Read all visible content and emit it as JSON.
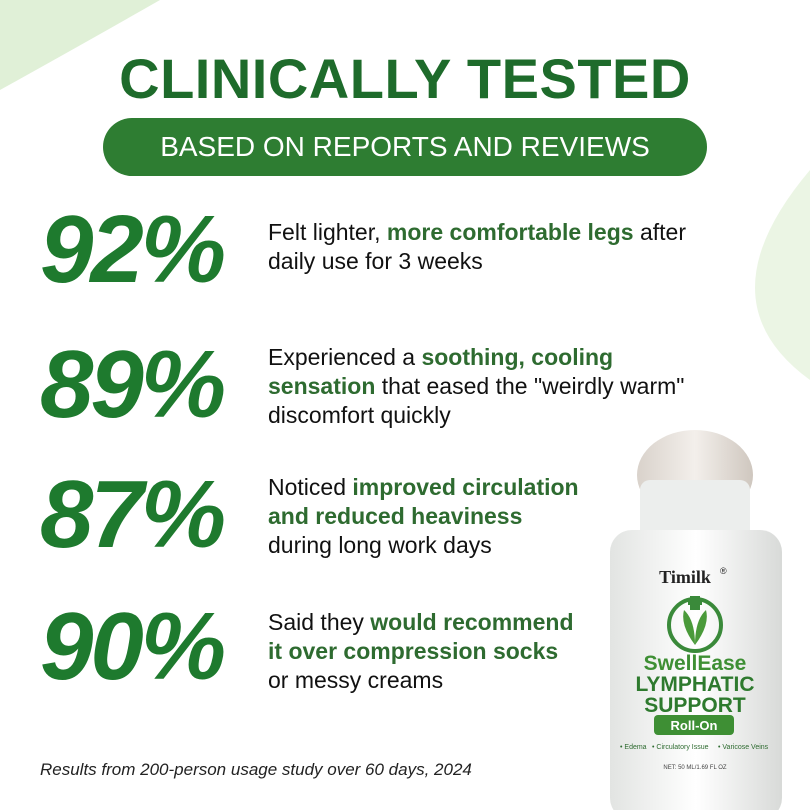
{
  "header": {
    "title": "CLINICALLY TESTED",
    "subtitle": "BASED ON REPORTS AND REVIEWS"
  },
  "stats": [
    {
      "percent": "92%",
      "parts": [
        {
          "text": "Felt lighter, ",
          "emphasis": false
        },
        {
          "text": "more comfortable legs",
          "emphasis": true
        },
        {
          "text": " after daily use for 3 weeks",
          "emphasis": false
        }
      ]
    },
    {
      "percent": "89%",
      "parts": [
        {
          "text": "Experienced a ",
          "emphasis": false
        },
        {
          "text": "soothing, cooling sensation",
          "emphasis": true
        },
        {
          "text": " that eased the \"weirdly warm\" discomfort quickly",
          "emphasis": false
        }
      ]
    },
    {
      "percent": "87%",
      "parts": [
        {
          "text": "Noticed ",
          "emphasis": false
        },
        {
          "text": "improved circulation and reduced heaviness",
          "emphasis": true
        },
        {
          "text": " during long work days",
          "emphasis": false
        }
      ]
    },
    {
      "percent": "90%",
      "parts": [
        {
          "text": "Said they ",
          "emphasis": false
        },
        {
          "text": "would recommend it over compression socks",
          "emphasis": true
        },
        {
          "text": " or messy creams",
          "emphasis": false
        }
      ]
    }
  ],
  "footnote": "Results from 200-person usage study over 60 days, 2024",
  "product": {
    "brand": "Timilk",
    "mark": "®",
    "name": "SwellEase",
    "line1": "LYMPHATIC",
    "line2": "SUPPORT",
    "variant": "Roll-On",
    "uses": [
      "• Edema",
      "• Circulatory Issue",
      "• Varicose Veins"
    ],
    "net": "NET: 50 ML/1.69 FL OZ"
  }
}
